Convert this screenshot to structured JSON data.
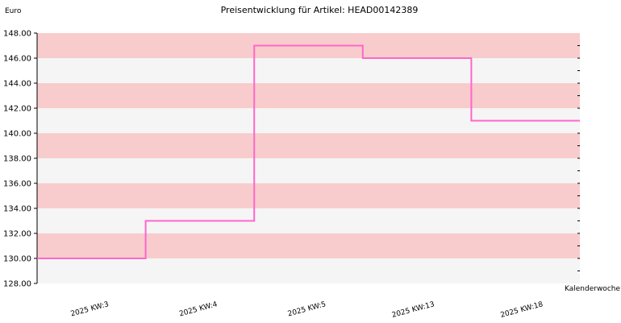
{
  "chart_data": {
    "type": "line",
    "step": true,
    "title": "Preisentwicklung für Artikel: HEAD00142389",
    "ylabel": "Euro",
    "xlabel": "Kalenderwoche",
    "ylim": [
      128,
      148
    ],
    "yticks": [
      "128.00",
      "130.00",
      "132.00",
      "134.00",
      "136.00",
      "138.00",
      "140.00",
      "142.00",
      "144.00",
      "146.00",
      "148.00"
    ],
    "categories": [
      "2025 KW:3",
      "2025 KW:4",
      "2025 KW:5",
      "2025 KW:13",
      "2025 KW:18"
    ],
    "series": [
      {
        "values": [
          130,
          133,
          147,
          146,
          141
        ]
      }
    ],
    "grid": true,
    "colors": {
      "line": "#ff66cc",
      "band_dark": "#f8cccc",
      "band_light": "#f5f5f5",
      "axis": "#000000"
    }
  }
}
